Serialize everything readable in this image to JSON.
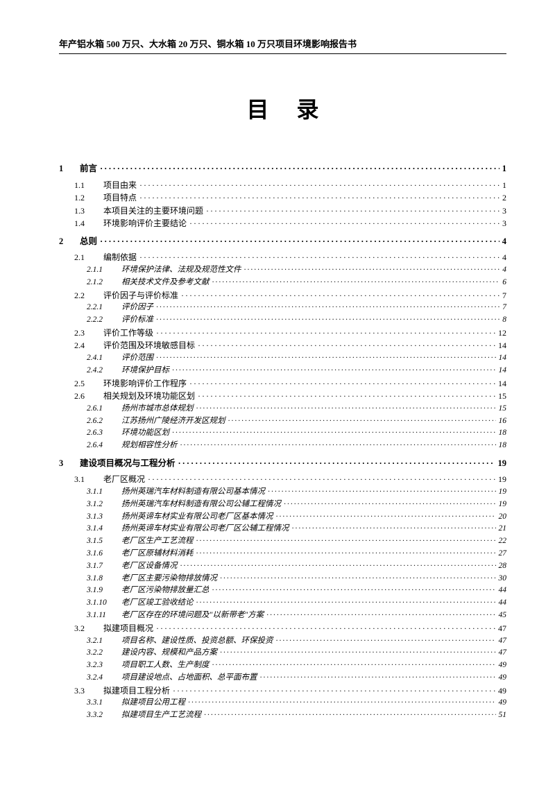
{
  "header": "年产铝水箱 500 万只、大水箱 20 万只、铜水箱 10 万只项目环境影响报告书",
  "title": "目录",
  "toc": [
    {
      "lvl": 1,
      "num": "1",
      "txt": "前言",
      "pg": "1"
    },
    {
      "lvl": 2,
      "num": "1.1",
      "txt": "项目由来",
      "pg": "1"
    },
    {
      "lvl": 2,
      "num": "1.2",
      "txt": "项目特点",
      "pg": "2"
    },
    {
      "lvl": 2,
      "num": "1.3",
      "txt": "本项目关注的主要环境问题",
      "pg": "3"
    },
    {
      "lvl": 2,
      "num": "1.4",
      "txt": "环境影响评价主要结论",
      "pg": "3"
    },
    {
      "lvl": 1,
      "num": "2",
      "txt": "总则",
      "pg": "4"
    },
    {
      "lvl": 2,
      "num": "2.1",
      "txt": "编制依据",
      "pg": "4"
    },
    {
      "lvl": 3,
      "num": "2.1.1",
      "txt": "环境保护法律、法规及规范性文件",
      "pg": "4"
    },
    {
      "lvl": 3,
      "num": "2.1.2",
      "txt": "相关技术文件及参考文献",
      "pg": "6"
    },
    {
      "lvl": 2,
      "num": "2.2",
      "txt": "评价因子与评价标准",
      "pg": "7"
    },
    {
      "lvl": 3,
      "num": "2.2.1",
      "txt": "评价因子",
      "pg": "7"
    },
    {
      "lvl": 3,
      "num": "2.2.2",
      "txt": "评价标准",
      "pg": "8"
    },
    {
      "lvl": 2,
      "num": "2.3",
      "txt": "评价工作等级",
      "pg": "12"
    },
    {
      "lvl": 2,
      "num": "2.4",
      "txt": "评价范围及环境敏感目标",
      "pg": "14"
    },
    {
      "lvl": 3,
      "num": "2.4.1",
      "txt": "评价范围",
      "pg": "14"
    },
    {
      "lvl": 3,
      "num": "2.4.2",
      "txt": "环境保护目标",
      "pg": "14"
    },
    {
      "lvl": 2,
      "num": "2.5",
      "txt": "环境影响评价工作程序",
      "pg": "14"
    },
    {
      "lvl": 2,
      "num": "2.6",
      "txt": "相关规划及环境功能区划",
      "pg": "15"
    },
    {
      "lvl": 3,
      "num": "2.6.1",
      "txt": "扬州市城市总体规划",
      "pg": "15"
    },
    {
      "lvl": 3,
      "num": "2.6.2",
      "txt": "江苏扬州广陵经济开发区规划",
      "pg": "16"
    },
    {
      "lvl": 3,
      "num": "2.6.3",
      "txt": "环境功能区划",
      "pg": "18"
    },
    {
      "lvl": 3,
      "num": "2.6.4",
      "txt": "规划相容性分析",
      "pg": "18"
    },
    {
      "lvl": 1,
      "num": "3",
      "txt": "建设项目概况与工程分析",
      "pg": "19"
    },
    {
      "lvl": 2,
      "num": "3.1",
      "txt": "老厂区概况",
      "pg": "19"
    },
    {
      "lvl": 3,
      "num": "3.1.1",
      "txt": "扬州英瑞汽车材料制造有限公司基本情况",
      "pg": "19"
    },
    {
      "lvl": 3,
      "num": "3.1.2",
      "txt": "扬州英瑞汽车材料制造有限公司公辅工程情况",
      "pg": "19"
    },
    {
      "lvl": 3,
      "num": "3.1.3",
      "txt": "扬州英谛车材实业有限公司老厂区基本情况",
      "pg": "20"
    },
    {
      "lvl": 3,
      "num": "3.1.4",
      "txt": "扬州英谛车材实业有限公司老厂区公辅工程情况",
      "pg": "21"
    },
    {
      "lvl": 3,
      "num": "3.1.5",
      "txt": "老厂区生产工艺流程",
      "pg": "22"
    },
    {
      "lvl": 3,
      "num": "3.1.6",
      "txt": "老厂区原辅材料消耗",
      "pg": "27"
    },
    {
      "lvl": 3,
      "num": "3.1.7",
      "txt": "老厂区设备情况",
      "pg": "28"
    },
    {
      "lvl": 3,
      "num": "3.1.8",
      "txt": "老厂区主要污染物排放情况",
      "pg": "30"
    },
    {
      "lvl": 3,
      "num": "3.1.9",
      "txt": "老厂区污染物排放量汇总",
      "pg": "44"
    },
    {
      "lvl": 3,
      "num": "3.1.10",
      "txt": "老厂区竣工验收结论",
      "pg": "44"
    },
    {
      "lvl": 3,
      "num": "3.1.11",
      "txt": "老厂区存在的环境问题及\"以新带老\"方案",
      "pg": "45"
    },
    {
      "lvl": 2,
      "num": "3.2",
      "txt": "拟建项目概况",
      "pg": "47"
    },
    {
      "lvl": 3,
      "num": "3.2.1",
      "txt": "项目名称、建设性质、投资总额、环保投资",
      "pg": "47"
    },
    {
      "lvl": 3,
      "num": "3.2.2",
      "txt": "建设内容、规模和产品方案",
      "pg": "47"
    },
    {
      "lvl": 3,
      "num": "3.2.3",
      "txt": "项目职工人数、生产制度",
      "pg": "49"
    },
    {
      "lvl": 3,
      "num": "3.2.4",
      "txt": "项目建设地点、占地面积、总平面布置",
      "pg": "49"
    },
    {
      "lvl": 2,
      "num": "3.3",
      "txt": "拟建项目工程分析",
      "pg": "49"
    },
    {
      "lvl": 3,
      "num": "3.3.1",
      "txt": "拟建项目公用工程",
      "pg": "49"
    },
    {
      "lvl": 3,
      "num": "3.3.2",
      "txt": "拟建项目生产工艺流程",
      "pg": "51"
    }
  ]
}
